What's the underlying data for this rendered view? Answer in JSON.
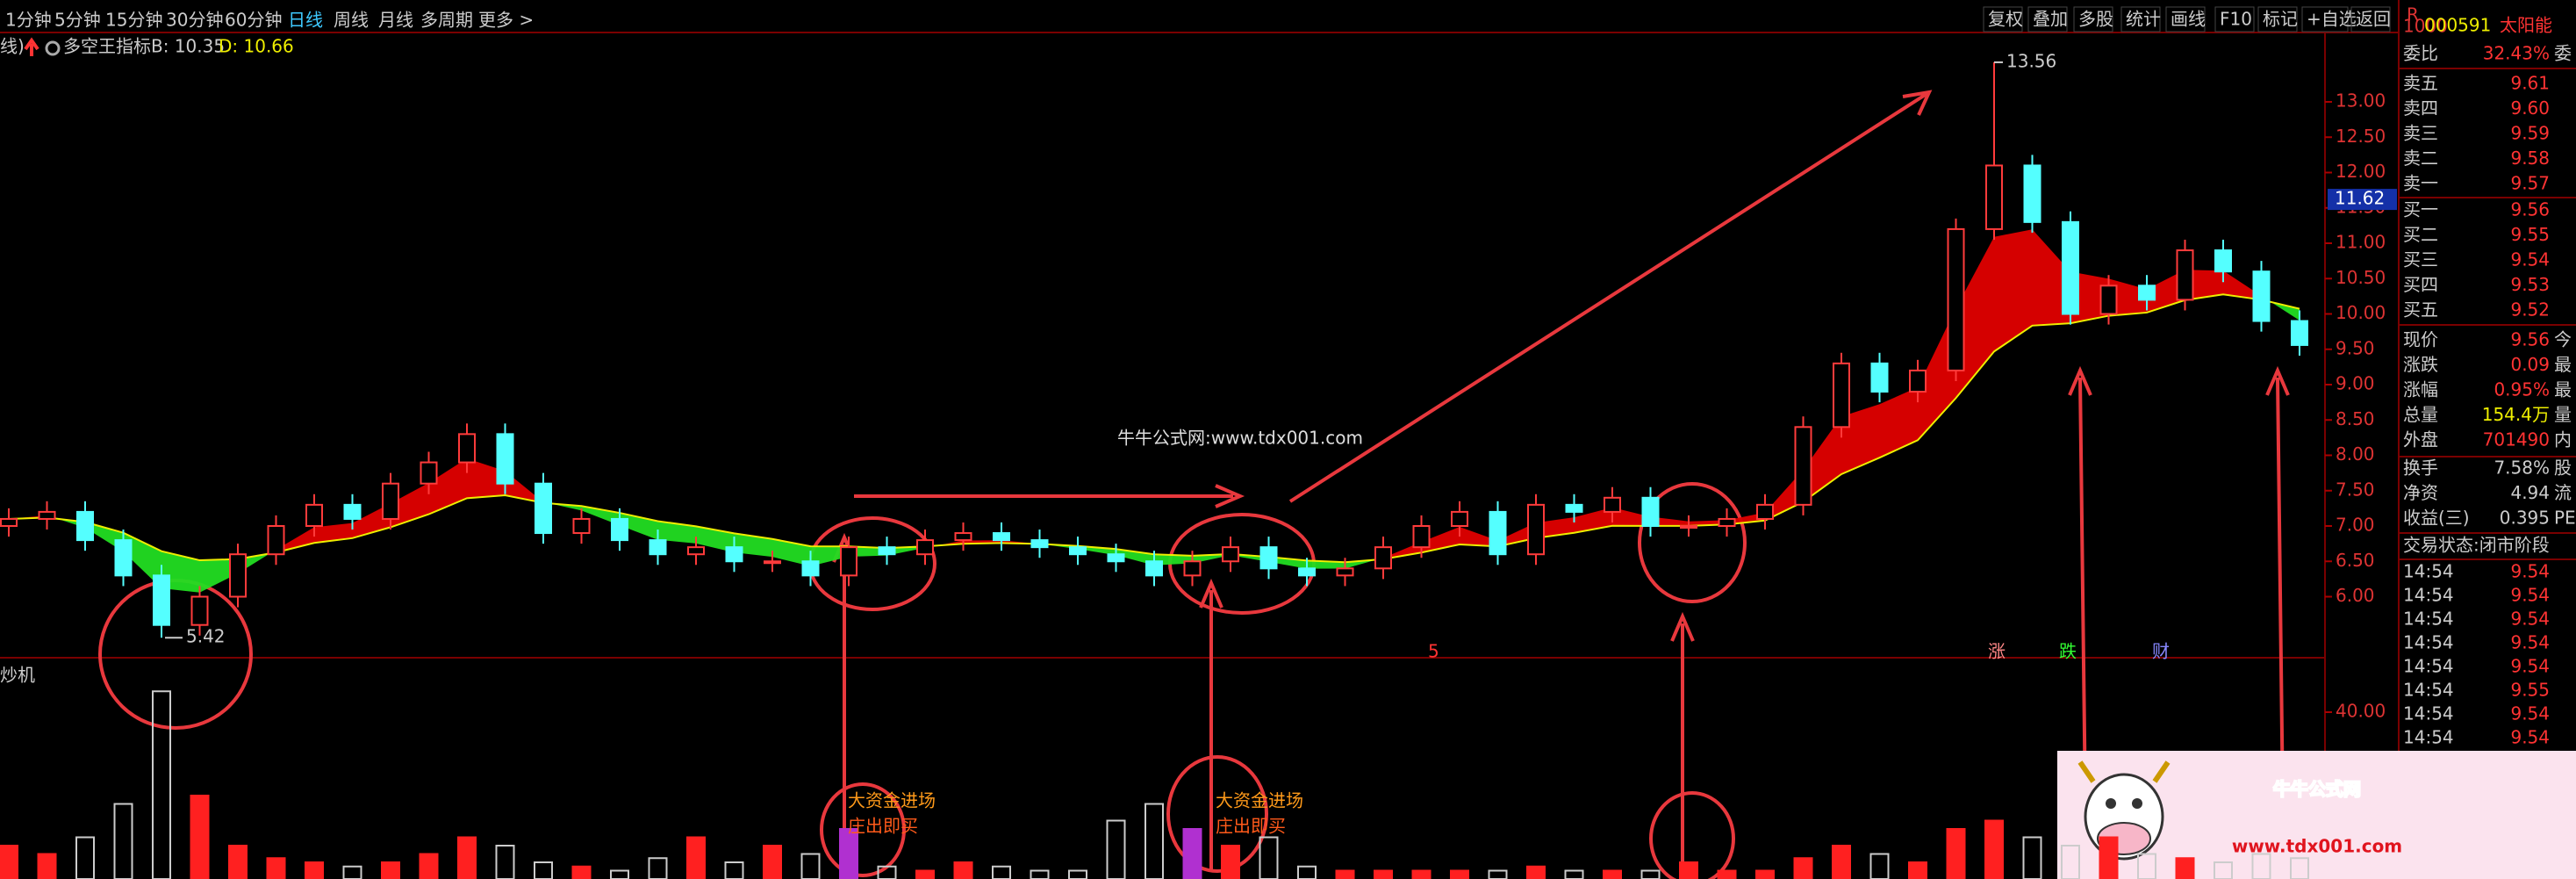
{
  "toolbar": {
    "periods": [
      "1分钟",
      "5分钟",
      "15分钟",
      "30分钟",
      "60分钟",
      "日线",
      "周线",
      "月线",
      "多周期",
      "更多 >"
    ],
    "tools": [
      "复权",
      "叠加",
      "多股",
      "统计",
      "画线",
      "F10",
      "标记",
      "+自选",
      "返回"
    ]
  },
  "indicator": {
    "prefix": "线)",
    "name": "多空王指标",
    "b": "B: 10.35",
    "d": "D: 10.66"
  },
  "price_axis": {
    "ticks": [
      {
        "value": 13,
        "label": "13.00"
      },
      {
        "value": 12.5,
        "label": "12.50"
      },
      {
        "value": 12,
        "label": "12.00"
      },
      {
        "value": 11.5,
        "label": "11.50"
      },
      {
        "value": 11,
        "label": "11.00"
      },
      {
        "value": 10.5,
        "label": "10.50"
      },
      {
        "value": 10,
        "label": "10.00"
      },
      {
        "value": 9.5,
        "label": "9.50"
      },
      {
        "value": 9,
        "label": "9.00"
      },
      {
        "value": 8.5,
        "label": "8.50"
      },
      {
        "value": 8,
        "label": "8.00"
      },
      {
        "value": 7.5,
        "label": "7.50"
      },
      {
        "value": 7,
        "label": "7.00"
      },
      {
        "value": 6.5,
        "label": "6.50"
      },
      {
        "value": 6,
        "label": "6.00"
      }
    ],
    "current": {
      "value": 11.62,
      "label": "11.62"
    }
  },
  "candles": {
    "open": [
      7.0,
      7.1,
      7.2,
      6.8,
      6.3,
      5.6,
      6.0,
      6.6,
      7.0,
      7.3,
      7.1,
      7.6,
      7.9,
      8.3,
      7.6,
      6.9,
      7.1,
      6.8,
      6.6,
      6.7,
      6.5,
      6.5,
      6.3,
      6.7,
      6.6,
      6.8,
      6.9,
      6.8,
      6.7,
      6.6,
      6.5,
      6.3,
      6.5,
      6.7,
      6.4,
      6.3,
      6.4,
      6.7,
      7.0,
      7.2,
      6.6,
      7.3,
      7.2,
      7.4,
      7.0,
      7.0,
      7.1,
      7.3,
      8.4,
      9.3,
      8.9,
      9.2,
      11.2,
      12.1,
      11.3,
      10.0,
      10.4,
      10.2,
      10.9,
      10.6,
      9.9
    ],
    "high": [
      7.25,
      7.35,
      7.35,
      6.95,
      6.45,
      6.15,
      6.75,
      7.15,
      7.45,
      7.45,
      7.75,
      8.05,
      8.45,
      8.45,
      7.75,
      7.25,
      7.25,
      6.95,
      6.85,
      6.85,
      6.65,
      6.65,
      6.85,
      6.85,
      6.95,
      7.05,
      7.05,
      6.95,
      6.85,
      6.75,
      6.65,
      6.65,
      6.85,
      6.85,
      6.55,
      6.55,
      6.85,
      7.15,
      7.35,
      7.35,
      7.45,
      7.45,
      7.55,
      7.55,
      7.15,
      7.25,
      7.45,
      8.55,
      9.45,
      9.45,
      9.35,
      11.35,
      13.56,
      12.25,
      11.45,
      10.55,
      10.55,
      11.05,
      11.05,
      10.75,
      10.05
    ],
    "low": [
      6.85,
      6.95,
      6.65,
      6.15,
      5.42,
      5.45,
      5.85,
      6.45,
      6.85,
      6.95,
      6.95,
      7.45,
      7.75,
      7.45,
      6.75,
      6.75,
      6.65,
      6.45,
      6.45,
      6.35,
      6.35,
      6.15,
      6.15,
      6.45,
      6.45,
      6.65,
      6.65,
      6.55,
      6.45,
      6.35,
      6.15,
      6.15,
      6.35,
      6.25,
      6.15,
      6.15,
      6.25,
      6.55,
      6.85,
      6.45,
      6.45,
      7.05,
      7.05,
      6.85,
      6.85,
      6.85,
      6.95,
      7.15,
      8.25,
      8.75,
      8.75,
      9.05,
      11.05,
      11.15,
      9.85,
      9.85,
      10.05,
      10.05,
      10.45,
      9.75,
      9.41
    ],
    "close": [
      7.1,
      7.2,
      6.8,
      6.3,
      5.6,
      6.0,
      6.6,
      7.0,
      7.3,
      7.1,
      7.6,
      7.9,
      8.3,
      7.6,
      6.9,
      7.1,
      6.8,
      6.6,
      6.7,
      6.5,
      6.5,
      6.3,
      6.7,
      6.6,
      6.8,
      6.9,
      6.8,
      6.7,
      6.6,
      6.5,
      6.3,
      6.5,
      6.7,
      6.4,
      6.3,
      6.4,
      6.7,
      7.0,
      7.2,
      6.6,
      7.3,
      7.2,
      7.4,
      7.0,
      7.0,
      7.1,
      7.3,
      8.4,
      9.3,
      8.9,
      9.2,
      11.2,
      12.1,
      11.3,
      10.0,
      10.4,
      10.2,
      10.9,
      10.6,
      9.9,
      9.56
    ]
  },
  "volume": {
    "values": [
      8,
      6,
      10,
      18,
      45,
      20,
      8,
      5,
      4,
      3,
      4,
      6,
      10,
      8,
      4,
      3,
      2,
      5,
      10,
      4,
      8,
      6,
      12,
      3,
      2,
      4,
      3,
      2,
      2,
      14,
      18,
      12,
      8,
      10,
      3,
      2,
      2,
      2,
      2,
      2,
      3,
      2,
      2,
      2,
      4,
      2,
      2,
      5,
      8,
      6,
      4,
      12,
      14,
      10,
      8,
      10,
      6,
      5,
      4,
      6,
      5
    ],
    "ticks": [
      {
        "value": 40,
        "label": "40.00"
      }
    ],
    "highlight": [
      22,
      31
    ],
    "label": "炒机"
  },
  "annotations": {
    "high": "13.56",
    "low": "5.42",
    "watermark": "牛牛公式网:www.tdx001.com",
    "signals": [
      {
        "line1": "大资金进场",
        "line2": "庄出即买"
      },
      {
        "line1": "大资金进场",
        "line2": "庄出即买"
      }
    ],
    "events": [
      "5",
      "涨",
      "跌",
      "财"
    ]
  },
  "quote": {
    "badge": [
      "R",
      "1000"
    ],
    "code": "000591",
    "name": "太阳能",
    "ratio": {
      "label": "委比",
      "value": "32.43%",
      "suffix": "委"
    },
    "asks": [
      {
        "label": "卖五",
        "price": "9.61"
      },
      {
        "label": "卖四",
        "price": "9.60"
      },
      {
        "label": "卖三",
        "price": "9.59"
      },
      {
        "label": "卖二",
        "price": "9.58"
      },
      {
        "label": "卖一",
        "price": "9.57"
      }
    ],
    "bids": [
      {
        "label": "买一",
        "price": "9.56"
      },
      {
        "label": "买二",
        "price": "9.55"
      },
      {
        "label": "买三",
        "price": "9.54"
      },
      {
        "label": "买四",
        "price": "9.53"
      },
      {
        "label": "买五",
        "price": "9.52"
      }
    ],
    "stats": [
      {
        "label": "现价",
        "value": "9.56",
        "suffix": "今"
      },
      {
        "label": "涨跌",
        "value": "0.09",
        "suffix": "最"
      },
      {
        "label": "涨幅",
        "value": "0.95%",
        "suffix": "最"
      },
      {
        "label": "总量",
        "value": "154.4万",
        "suffix": "量"
      },
      {
        "label": "外盘",
        "value": "701490",
        "suffix": "内"
      },
      {
        "label": "换手",
        "value": "7.58%",
        "suffix": "股"
      },
      {
        "label": "净资",
        "value": "4.94",
        "suffix": "流"
      },
      {
        "label": "收益(三)",
        "value": "0.395",
        "suffix": "PE"
      }
    ],
    "status": "交易状态:闭市阶段",
    "ticks": [
      {
        "time": "14:54",
        "price": "9.54"
      },
      {
        "time": "14:54",
        "price": "9.54"
      },
      {
        "time": "14:54",
        "price": "9.54"
      },
      {
        "time": "14:54",
        "price": "9.54"
      },
      {
        "time": "14:54",
        "price": "9.54"
      },
      {
        "time": "14:54",
        "price": "9.55"
      },
      {
        "time": "14:54",
        "price": "9.54"
      },
      {
        "time": "14:54",
        "price": "9.54"
      }
    ]
  },
  "logo": {
    "title": "牛牛公式网",
    "url": "www.tdx001.com"
  }
}
